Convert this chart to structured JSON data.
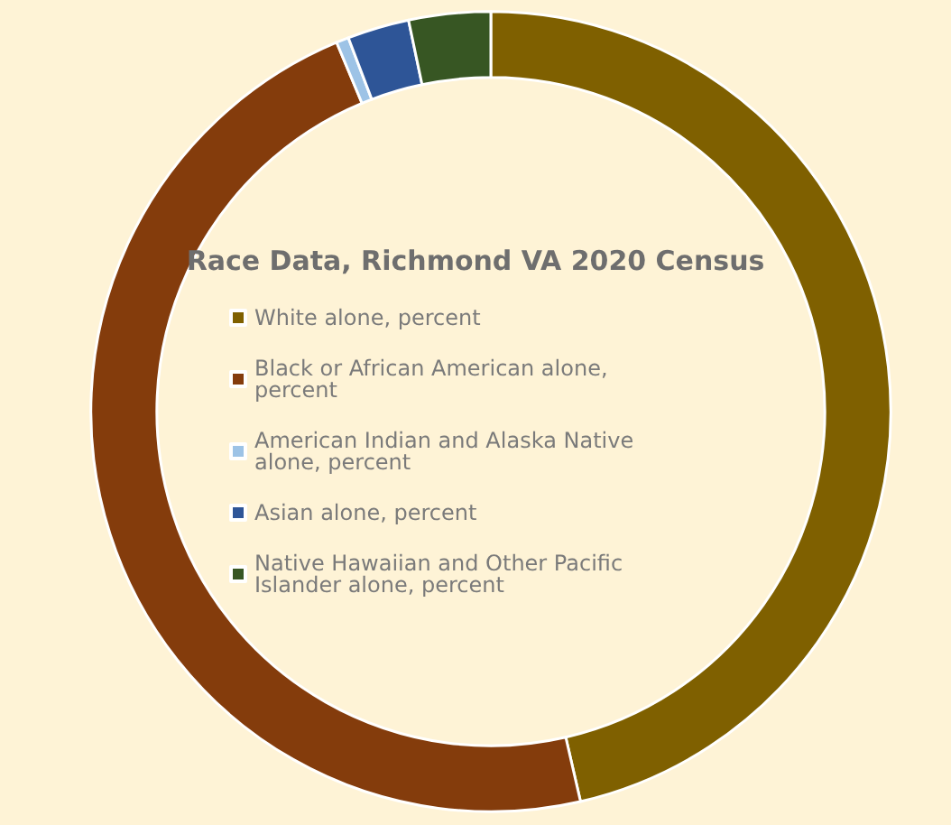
{
  "chart_data": {
    "type": "donut",
    "title": "Race Data, Richmond VA 2020 Census",
    "categories": [
      "White alone, percent",
      "Black or African American alone, percent",
      "American Indian and Alaska Native alone, percent",
      "Asian alone, percent",
      "Native Hawaiian and Other Pacific Islander alone, percent"
    ],
    "values": [
      46.4,
      47.3,
      0.5,
      2.5,
      3.3
    ],
    "colors": [
      "#7f6000",
      "#843c0c",
      "#9dc3e6",
      "#2e5597",
      "#375623"
    ],
    "legend": "center"
  }
}
